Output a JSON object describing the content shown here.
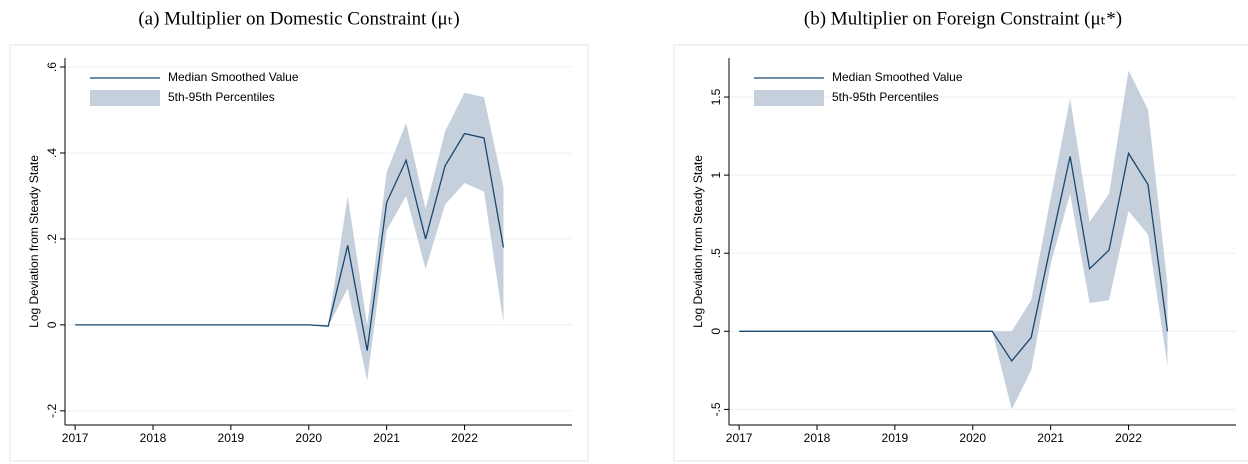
{
  "chart_data": [
    {
      "type": "line",
      "title": "(a) Multiplier on Domestic Constraint (μₜ)",
      "y_label": "Log Deviation from Steady State",
      "x": [
        2017,
        2017.25,
        2017.5,
        2017.75,
        2018,
        2018.25,
        2018.5,
        2018.75,
        2019,
        2019.25,
        2019.5,
        2019.75,
        2020,
        2020.25,
        2020.5,
        2020.75,
        2021,
        2021.25,
        2021.5,
        2021.75,
        2022,
        2022.25,
        2022.5
      ],
      "series": [
        {
          "name": "5th-95th Percentiles",
          "color": "#c6d0dc",
          "lower": [
            0,
            0,
            0,
            0,
            0,
            0,
            0,
            0,
            0,
            0,
            0,
            0,
            0,
            -0.003,
            0.085,
            -0.13,
            0.22,
            0.3,
            0.13,
            0.28,
            0.33,
            0.31,
            0.005
          ],
          "upper": [
            0,
            0,
            0,
            0,
            0,
            0,
            0,
            0,
            0,
            0,
            0,
            0,
            0,
            0,
            0.3,
            0.0,
            0.355,
            0.47,
            0.27,
            0.45,
            0.54,
            0.53,
            0.32
          ]
        },
        {
          "name": "Median Smoothed Value",
          "color": "#1a476f",
          "values": [
            0,
            0,
            0,
            0,
            0,
            0,
            0,
            0,
            0,
            0,
            0,
            0,
            0,
            -0.003,
            0.185,
            -0.06,
            0.285,
            0.383,
            0.2,
            0.37,
            0.445,
            0.435,
            0.18
          ]
        }
      ],
      "xlim": [
        2016.87,
        2023.38
      ],
      "xticks": [
        2017,
        2018,
        2019,
        2020,
        2021,
        2022
      ],
      "ylim": [
        -0.233,
        0.621
      ],
      "yticks": [
        {
          "value": -0.2,
          "label": "-.2"
        },
        0,
        {
          "value": 0.2,
          "label": ".2"
        },
        {
          "value": 0.4,
          "label": ".4"
        },
        {
          "value": 0.6,
          "label": ".6"
        }
      ],
      "grid": true,
      "legend": "top-left"
    },
    {
      "type": "line",
      "title": "(b) Multiplier on Foreign Constraint (μₜ*)",
      "y_label": "Log Deviation from Steady State",
      "x": [
        2017,
        2017.25,
        2017.5,
        2017.75,
        2018,
        2018.25,
        2018.5,
        2018.75,
        2019,
        2019.25,
        2019.5,
        2019.75,
        2020,
        2020.25,
        2020.5,
        2020.75,
        2021,
        2021.25,
        2021.5,
        2021.75,
        2022,
        2022.25,
        2022.5
      ],
      "series": [
        {
          "name": "5th-95th Percentiles",
          "color": "#c6d0dc",
          "lower": [
            0,
            0,
            0,
            0,
            0,
            0,
            0,
            0,
            0,
            0,
            0,
            0,
            0,
            0,
            -0.5,
            -0.25,
            0.43,
            0.88,
            0.18,
            0.2,
            0.77,
            0.62,
            -0.22
          ],
          "upper": [
            0,
            0,
            0,
            0,
            0,
            0,
            0,
            0,
            0,
            0,
            0,
            0,
            0,
            0,
            0.0,
            0.2,
            0.85,
            1.49,
            0.7,
            0.88,
            1.67,
            1.42,
            0.3
          ]
        },
        {
          "name": "Median Smoothed Value",
          "color": "#1a476f",
          "values": [
            0,
            0,
            0,
            0,
            0,
            0,
            0,
            0,
            0,
            0,
            0,
            0,
            0,
            0,
            -0.19,
            -0.04,
            0.55,
            1.12,
            0.4,
            0.52,
            1.14,
            0.94,
            0.0
          ]
        }
      ],
      "xlim": [
        2016.87,
        2023.38
      ],
      "xticks": [
        2017,
        2018,
        2019,
        2020,
        2021,
        2022
      ],
      "ylim": [
        -0.6,
        1.75
      ],
      "yticks": [
        {
          "value": -0.5,
          "label": "-.5"
        },
        0,
        {
          "value": 0.5,
          "label": ".5"
        },
        1,
        1.5
      ],
      "grid": true,
      "legend": "top-left"
    }
  ]
}
